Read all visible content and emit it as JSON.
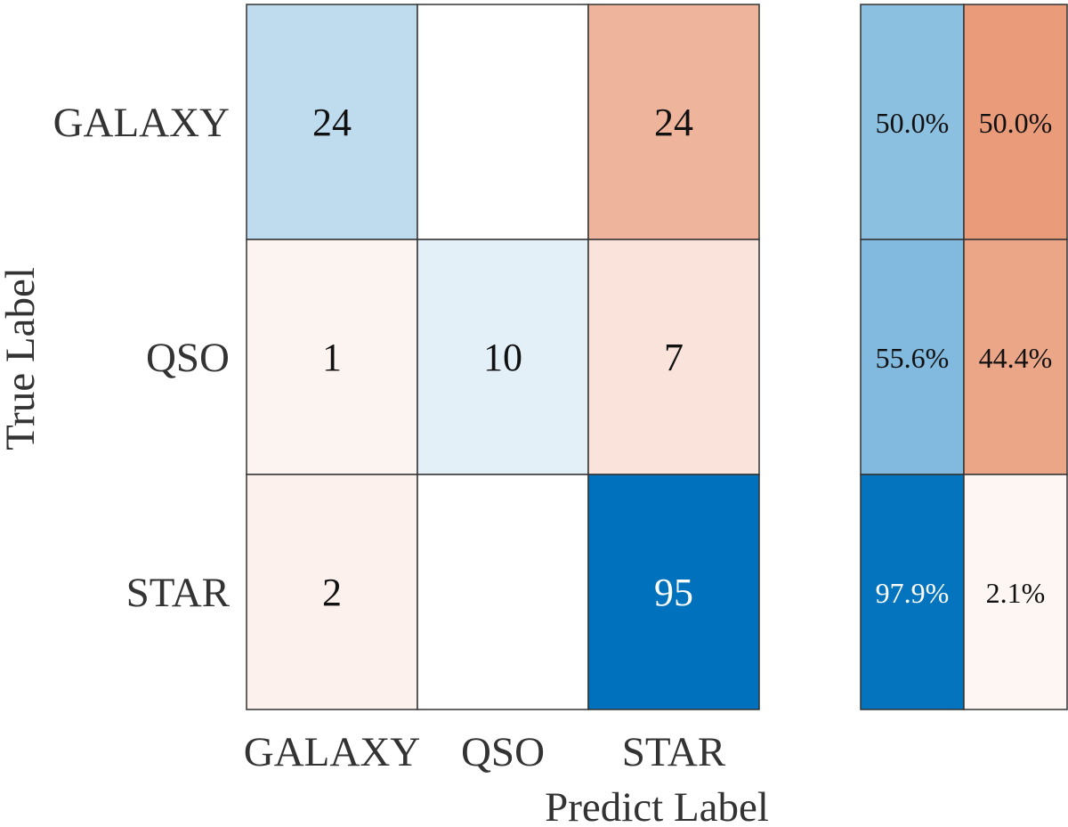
{
  "chart_data": {
    "type": "heatmap",
    "xlabel": "Predict Label",
    "ylabel": "True Label",
    "categories": [
      "GALAXY",
      "QSO",
      "STAR"
    ],
    "matrix": [
      [
        24,
        null,
        24
      ],
      [
        1,
        10,
        7
      ],
      [
        2,
        null,
        95
      ]
    ],
    "side_panel": {
      "rows": [
        {
          "correct": "50.0%",
          "incorrect": "50.0%"
        },
        {
          "correct": "55.6%",
          "incorrect": "44.4%"
        },
        {
          "correct": "97.9%",
          "incorrect": "2.1%"
        }
      ]
    },
    "colors": {
      "correct_scale": [
        "#ffffff",
        "#0072bd"
      ],
      "incorrect_scale": [
        "#ffffff",
        "#d95319"
      ]
    }
  }
}
